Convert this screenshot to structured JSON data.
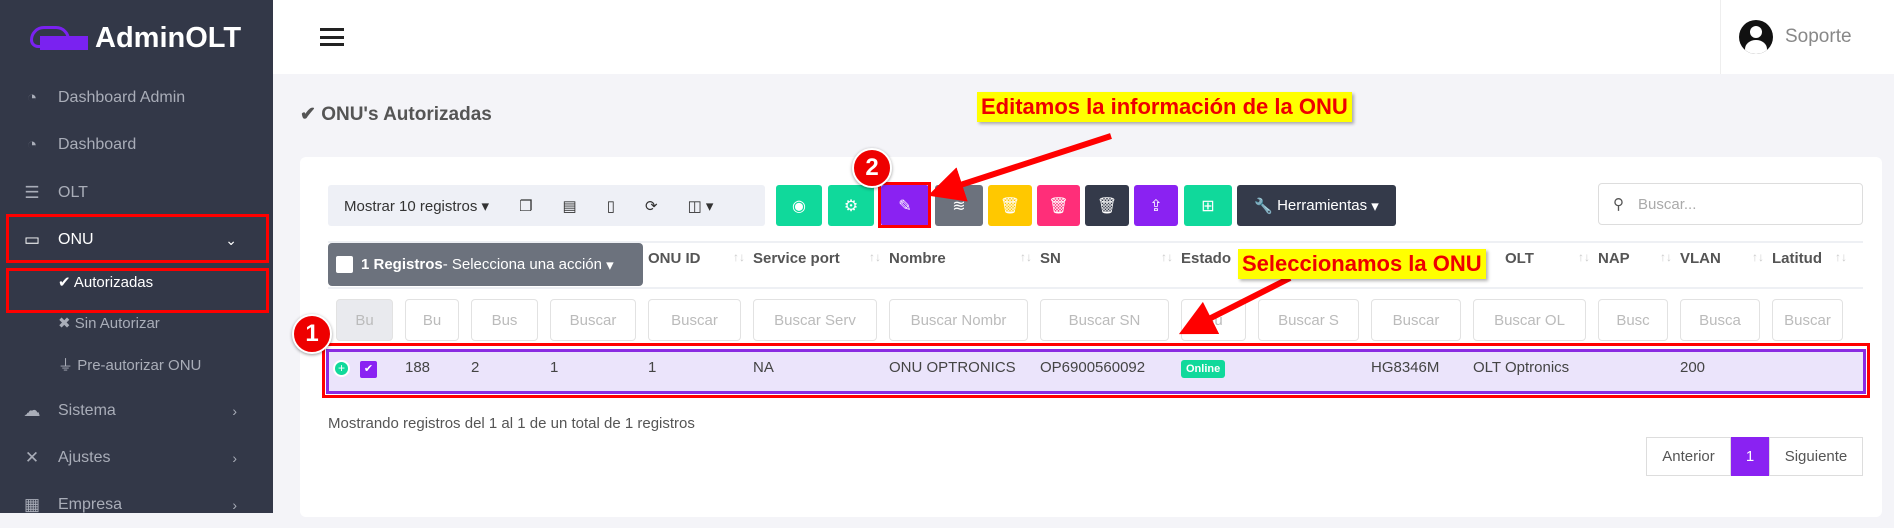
{
  "app": {
    "name": "AdminOLT"
  },
  "sidebar": {
    "items": [
      {
        "label": "Dashboard Admin",
        "icon": "tachometer-icon"
      },
      {
        "label": "Dashboard",
        "icon": "tachometer-icon"
      },
      {
        "label": "OLT",
        "icon": "server-icon"
      },
      {
        "label": "ONU",
        "icon": "hdd-icon"
      },
      {
        "label": "Sistema",
        "icon": "cloud-icon"
      },
      {
        "label": "Ajustes",
        "icon": "tools-icon"
      },
      {
        "label": "Empresa",
        "icon": "building-icon"
      }
    ],
    "onu_sub": [
      {
        "label": "Autorizadas",
        "icon": "check-icon"
      },
      {
        "label": "Sin Autorizar",
        "icon": "times-icon"
      },
      {
        "label": "Pre-autorizar ONU",
        "icon": "plug-icon"
      }
    ]
  },
  "header": {
    "user": "Soporte"
  },
  "page": {
    "title": "ONU's Autorizadas"
  },
  "toolbar": {
    "show_label": "Mostrar 10 registros",
    "tools_label": "Herramientas",
    "search_placeholder": "Buscar...",
    "buttons": [
      {
        "icon": "eye-icon",
        "color": "#10d99b"
      },
      {
        "icon": "cogs-icon",
        "color": "#10d99b"
      },
      {
        "icon": "edit-icon",
        "color": "#8a22f2"
      },
      {
        "icon": "wifi-icon",
        "color": "#6c727d"
      },
      {
        "icon": "trash-icon",
        "color": "#ffc800"
      },
      {
        "icon": "trash-icon",
        "color": "#ff2e79"
      },
      {
        "icon": "trash-icon",
        "color": "#343a4a"
      },
      {
        "icon": "upload-icon",
        "color": "#8a22f2"
      },
      {
        "icon": "network-icon",
        "color": "#10d99b"
      }
    ]
  },
  "table": {
    "select_count": "1 Registros",
    "select_action": " - Selecciona una acción",
    "headers": [
      "ONU ID",
      "Service port",
      "Nombre",
      "SN",
      "Estado",
      "",
      "",
      "OLT",
      "NAP",
      "VLAN",
      "Latitud"
    ],
    "filters": [
      "Bu",
      "Bu",
      "Bus",
      "Buscar",
      "Buscar",
      "Buscar Serv",
      "Buscar Nombr",
      "Buscar SN",
      "Bu",
      "Buscar S",
      "Buscar",
      "Buscar OL",
      "Busc",
      "Busca",
      "Buscar"
    ],
    "row": [
      "188",
      "2",
      "1",
      "1",
      "NA",
      "ONU OPTRONICS",
      "OP6900560092",
      "Online",
      "",
      "HG8346M",
      "OLT Optronics",
      "",
      "200",
      ""
    ],
    "info": "Mostrando registros del 1 al 1 de un total de 1 registros"
  },
  "pagination": {
    "prev": "Anterior",
    "page": "1",
    "next": "Siguiente"
  },
  "annotations": {
    "note1": "Seleccionamos la ONU",
    "note2": "Editamos la información de la ONU",
    "step1": "1",
    "step2": "2"
  }
}
